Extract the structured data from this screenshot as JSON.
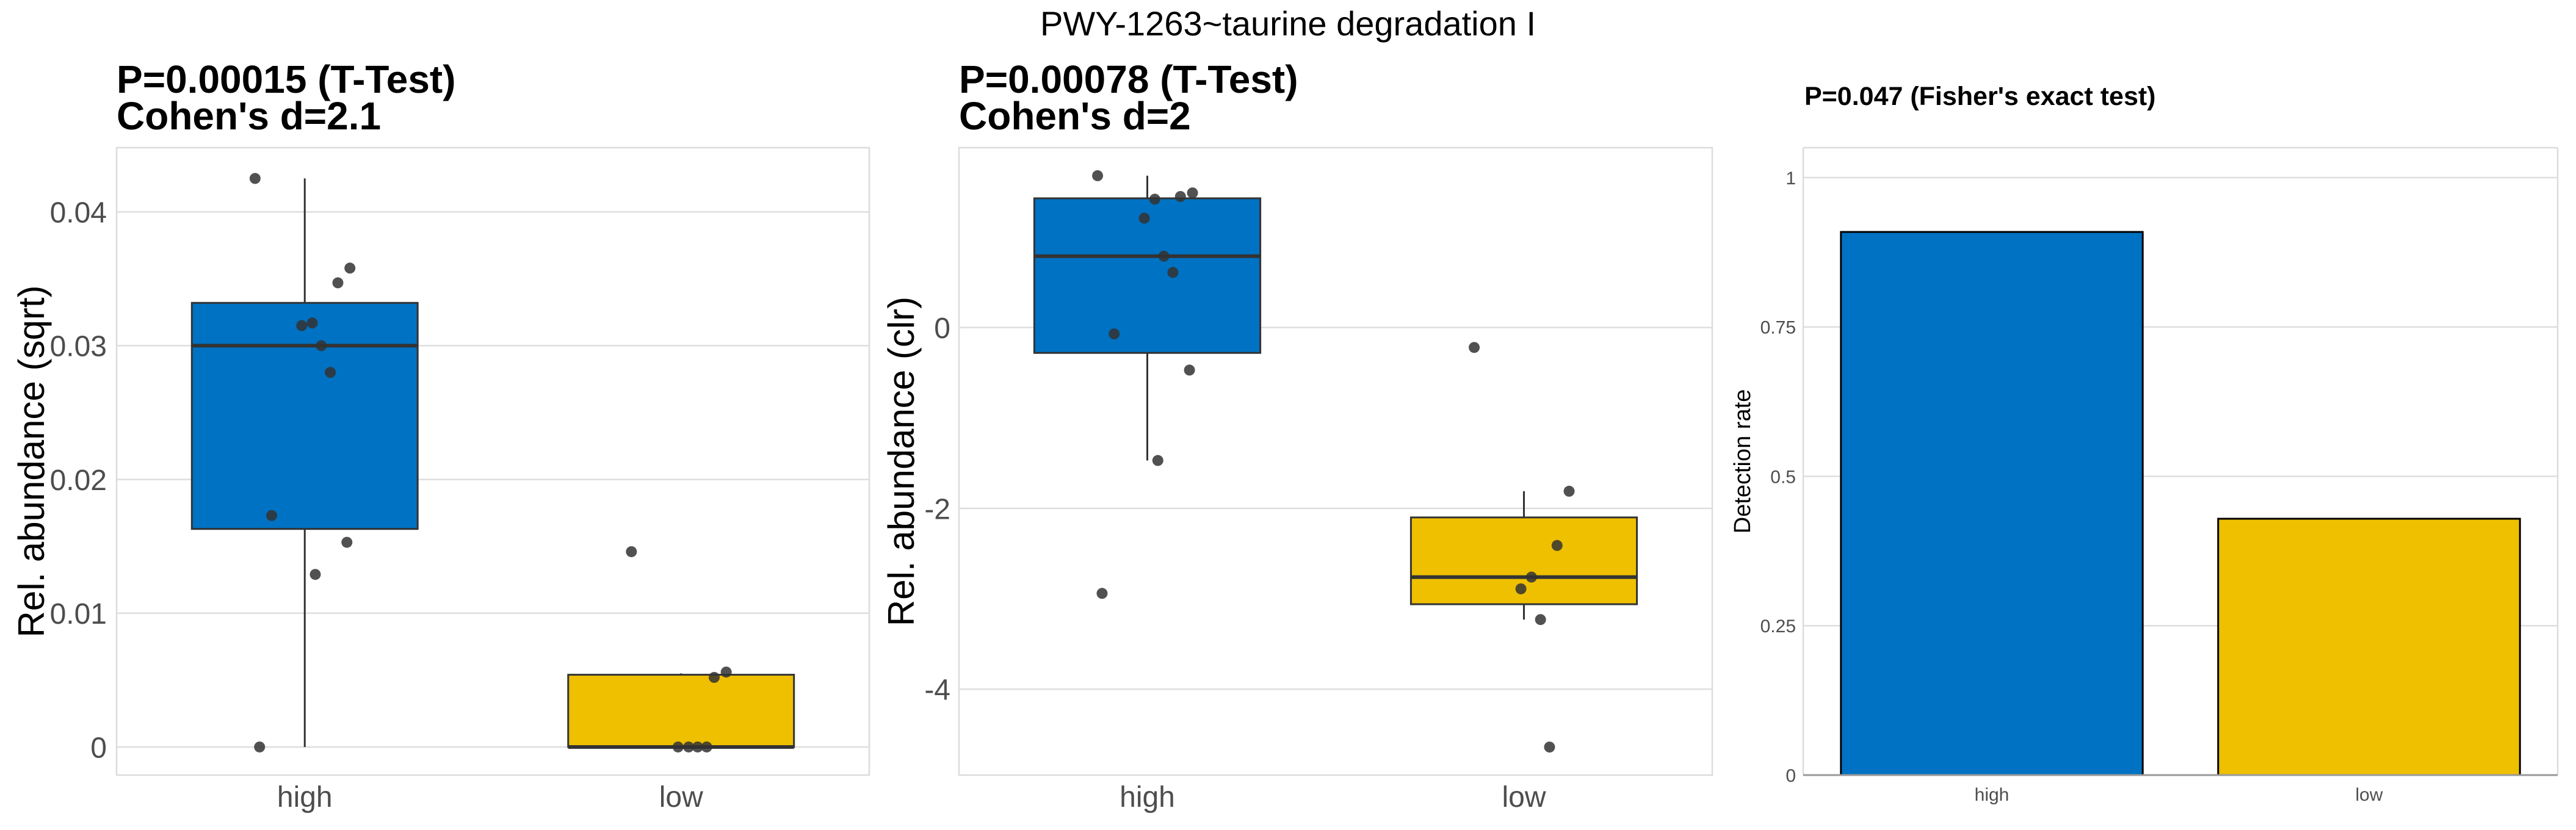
{
  "title": "PWY-1263~taurine degradation I",
  "colors": {
    "high": "#0072C3",
    "low": "#EFC000",
    "point": "#333333"
  },
  "chart_data": [
    {
      "type": "box",
      "subtitle": [
        "P=0.00015 (T-Test)",
        "Cohen's d=2.1"
      ],
      "ylabel": "Rel. abundance (sqrt)",
      "categories": [
        "high",
        "low"
      ],
      "ylim": [
        -0.0021,
        0.0448
      ],
      "yticks": [
        0,
        0.01,
        0.02,
        0.03,
        0.04
      ],
      "ytick_labels": [
        "0",
        "0.01",
        "0.02",
        "0.03",
        "0.04"
      ],
      "boxes": [
        {
          "group": "high",
          "whisker_low": 0,
          "q1": 0.0163,
          "median": 0.03,
          "q3": 0.0332,
          "whisker_high": 0.0425
        },
        {
          "group": "low",
          "whisker_low": 0,
          "q1": 0,
          "median": 0,
          "q3": 0.0054,
          "whisker_high": 0.0055
        }
      ],
      "points": [
        {
          "group": "high",
          "values": [
            0.0425,
            0.0358,
            0.0347,
            0.0317,
            0.0315,
            0.03,
            0.028,
            0.0173,
            0.0153,
            0.0129,
            0.0
          ]
        },
        {
          "group": "low",
          "values": [
            0.0146,
            0.0056,
            0.0052,
            0.0,
            0.0,
            0.0,
            0.0
          ]
        }
      ]
    },
    {
      "type": "box",
      "subtitle": [
        "P=0.00078 (T-Test)",
        "Cohen's d=2"
      ],
      "ylabel": "Rel. abundance (clr)",
      "categories": [
        "high",
        "low"
      ],
      "ylim": [
        -4.95,
        1.99
      ],
      "yticks": [
        -4,
        -2,
        0
      ],
      "ytick_labels": [
        "-4",
        "-2",
        "0"
      ],
      "boxes": [
        {
          "group": "high",
          "whisker_low": -1.47,
          "q1": -0.28,
          "median": 0.79,
          "q3": 1.43,
          "whisker_high": 1.68
        },
        {
          "group": "low",
          "whisker_low": -3.23,
          "q1": -3.06,
          "median": -2.76,
          "q3": -2.1,
          "whisker_high": -1.81
        }
      ],
      "points": [
        {
          "group": "high",
          "values": [
            1.68,
            1.49,
            1.45,
            1.42,
            1.21,
            0.79,
            0.61,
            -0.07,
            -0.47,
            -1.47,
            -2.94
          ]
        },
        {
          "group": "low",
          "values": [
            -0.22,
            -1.81,
            -2.41,
            -2.76,
            -2.89,
            -3.23,
            -4.64
          ]
        }
      ]
    },
    {
      "type": "bar",
      "subtitle": [
        "P=0.047 (Fisher's exact test)"
      ],
      "ylabel": "Detection rate",
      "categories": [
        "high",
        "low"
      ],
      "values": [
        0.909,
        0.429
      ],
      "ylim": [
        0,
        1.05
      ],
      "yticks": [
        0,
        0.25,
        0.5,
        0.75,
        1
      ],
      "ytick_labels": [
        "0",
        "0.25",
        "0.5",
        "0.75",
        "1"
      ]
    }
  ]
}
